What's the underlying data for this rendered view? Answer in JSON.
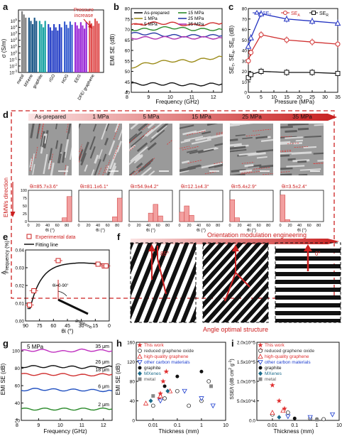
{
  "figure": {
    "panel_a": {
      "label": "a",
      "ylabel": "σ (S/m)",
      "yticks": [
        "10^5",
        "10^4",
        "10^3",
        "10^2",
        "10^1",
        "10^0",
        "10^-1",
        "10^-2",
        "10^-3"
      ],
      "categories": [
        "metal",
        "MXene",
        "graphite",
        "rGO",
        "HOG",
        "EEG",
        "DFE/ graphene",
        "graphene"
      ],
      "annotation": "Pressure increase"
    },
    "panel_b": {
      "label": "b",
      "xlabel": "Frequency (GHz)",
      "ylabel": "EMI SE (dB)",
      "yticks": [
        "40",
        "45",
        "50",
        "55",
        "60",
        "65",
        "70",
        "75",
        "80"
      ],
      "xticks": [
        "8",
        "9",
        "10",
        "11",
        "12"
      ],
      "legend": [
        "As-prepared",
        "1 MPa",
        "5 MPa",
        "15 MPa",
        "25 MPa",
        "35 MPa"
      ]
    },
    "panel_c": {
      "label": "c",
      "xlabel": "Pressure (MPa)",
      "ylabel": "SE_T, SE_A, SE_R (dB)",
      "legend": [
        "SE_T",
        "SE_A",
        "SE_R"
      ],
      "xticks": [
        "0",
        "5",
        "10",
        "15",
        "20",
        "25",
        "30",
        "35"
      ],
      "yticks": [
        "0",
        "10",
        "20",
        "30",
        "40",
        "50",
        "60",
        "70",
        "80"
      ]
    },
    "panel_d": {
      "label": "d",
      "side_label": "EMWs direction",
      "columns": [
        "As-prepared",
        "1 MPa",
        "5 MPa",
        "15 MPa",
        "25 MPa",
        "35 MPa"
      ],
      "theta_labels": [
        "θi=85.7±3.6°",
        "θi=81.1±6.1°",
        "θi=54.9±4.2°",
        "θi=12.1±4.3°",
        "θi=5.4±2.9°",
        "θi=3.5±2.4°"
      ],
      "hist_ylabel": "Frequency (%)",
      "hist_yticks": [
        "0",
        "25",
        "50",
        "75",
        "100"
      ],
      "hist_xlabel": "θi (°)",
      "hist_xticks": [
        "0",
        "20",
        "40",
        "60",
        "80"
      ]
    },
    "panel_e": {
      "label": "e",
      "legend": [
        "Experimental data",
        "Fitting line"
      ],
      "ylabel": "A",
      "xlabel": "θi (°)",
      "yticks": [
        "0.00",
        "0.01",
        "0.02",
        "0.03",
        "0.04"
      ],
      "xticks": [
        "90",
        "75",
        "60",
        "45",
        "30",
        "15",
        "0"
      ],
      "inset_theta": "θi=0-90°",
      "inset_label": "graphene"
    },
    "panel_f": {
      "label": "f",
      "title_top": "Orientation modulation engineering",
      "title_bottom": "Angle optimal structure",
      "angle_left": "85°",
      "angle_right": "0°"
    },
    "panel_g": {
      "label": "g",
      "title": "5 MPa",
      "xlabel": "Frequency (GHz)",
      "ylabel": "EMI SE (dB)",
      "yticks": [
        "20",
        "40",
        "60",
        "80",
        "100"
      ],
      "xticks": [
        "8",
        "9",
        "10",
        "11",
        "12"
      ],
      "curve_labels": [
        "35 μm",
        "26 μm",
        "18 μm",
        "6 μm",
        "2 μm"
      ]
    },
    "panel_h": {
      "label": "h",
      "xlabel": "Thickness (mm)",
      "ylabel": "EMI SE (dB)",
      "yticks": [
        "0",
        "40",
        "80",
        "120",
        "160"
      ],
      "xticks": [
        "0.01",
        "0.1",
        "1",
        "10"
      ],
      "legend": [
        "This work",
        "reduced graphene oxide",
        "high-quality graphene",
        "other carbon materials",
        "graphite",
        "MXenes",
        "metal"
      ]
    },
    "panel_i": {
      "label": "i",
      "xlabel": "Thickness (mm)",
      "ylabel": "SSE/t (dB cm^2 g^-1)",
      "yticks": [
        "0.0",
        "5.0x10^4",
        "1.0x10^5",
        "1.5x10^5",
        "2.0x10^5"
      ],
      "xticks": [
        "0.01",
        "0.1",
        "1",
        "10"
      ],
      "legend": [
        "This work",
        "reduced graphene oxide",
        "high-quality graphene",
        "other carbon materials",
        "graphite",
        "MXenes",
        "metal"
      ]
    }
  },
  "chart_data": [
    {
      "panel": "a",
      "type": "bar",
      "categories": [
        "metal",
        "MXene",
        "graphite",
        "rGO",
        "HOG",
        "EEG",
        "DFE/ graphene"
      ],
      "values_log10": [
        6.5,
        5.5,
        5.0,
        4.5,
        4.9,
        4.8,
        5.0
      ],
      "ylim_log10": [
        -3,
        6.7
      ],
      "colors": [
        "#7f7f7f",
        "#1f5a8a",
        "#1aa3a3",
        "#2c45c8",
        "#3a5fd0",
        "#9c2dd8",
        "#e05050"
      ]
    },
    {
      "panel": "b",
      "type": "line",
      "x": [
        8.2,
        9,
        10,
        11,
        12.4
      ],
      "xlim": [
        8.2,
        12.4
      ],
      "ylim": [
        40,
        80
      ],
      "series": [
        {
          "name": "As-prepared",
          "color": "#111111",
          "values": [
            44,
            44,
            44,
            43.5,
            44
          ]
        },
        {
          "name": "1 MPa",
          "color": "#9c8c1a",
          "values": [
            52,
            54,
            55,
            55,
            57
          ]
        },
        {
          "name": "5 MPa",
          "color": "#d03030",
          "values": [
            72,
            73,
            73,
            72,
            73
          ]
        },
        {
          "name": "15 MPa",
          "color": "#2a8a2a",
          "values": [
            70,
            70,
            71,
            70,
            70
          ]
        },
        {
          "name": "25 MPa",
          "color": "#2a3aa8",
          "values": [
            68,
            68,
            67,
            67,
            67
          ]
        },
        {
          "name": "35 MPa",
          "color": "#b030b0",
          "values": [
            66,
            66,
            66,
            66,
            66
          ]
        }
      ]
    },
    {
      "panel": "c",
      "type": "line",
      "x": [
        0,
        1,
        5,
        15,
        25,
        35
      ],
      "xlim": [
        0,
        35
      ],
      "ylim": [
        0,
        80
      ],
      "series": [
        {
          "name": "SE_T",
          "color": "#2030c0",
          "values": [
            44,
            52,
            75,
            70,
            68,
            66
          ]
        },
        {
          "name": "SE_A",
          "color": "#d03030",
          "values": [
            30,
            38,
            55,
            50,
            48,
            46
          ]
        },
        {
          "name": "SE_R",
          "color": "#111111",
          "values": [
            14,
            17,
            20,
            19,
            19,
            18
          ]
        }
      ]
    },
    {
      "panel": "d",
      "type": "bar",
      "x": [
        0,
        20,
        40,
        60,
        80
      ],
      "series": [
        {
          "name": "As-prepared",
          "peak_theta": 85.7,
          "peak_frequency": 80
        },
        {
          "name": "1 MPa",
          "peak_theta": 81.1,
          "peak_frequency": 75
        },
        {
          "name": "5 MPa",
          "peak_theta": 54.9,
          "peak_frequency": 55
        },
        {
          "name": "15 MPa",
          "peak_theta": 12.1,
          "peak_frequency": 50
        },
        {
          "name": "25 MPa",
          "peak_theta": 5.4,
          "peak_frequency": 70
        },
        {
          "name": "35 MPa",
          "peak_theta": 3.5,
          "peak_frequency": 85
        }
      ]
    },
    {
      "panel": "e",
      "type": "scatter",
      "x": [
        85.7,
        81.1,
        54.9,
        12.1,
        5.4,
        3.5
      ],
      "y": [
        0.009,
        0.017,
        0.034,
        0.032,
        0.031,
        0.031
      ],
      "xlim": [
        90,
        0
      ],
      "ylim": [
        0,
        0.04
      ]
    },
    {
      "panel": "g",
      "type": "line",
      "x": [
        8.2,
        9,
        10,
        11,
        12.4
      ],
      "xlim": [
        8.2,
        12.4
      ],
      "ylim": [
        20,
        110
      ],
      "series": [
        {
          "name": "35 μm",
          "color": "#c030c0",
          "values": [
            100,
            101,
            99,
            101,
            100
          ]
        },
        {
          "name": "26 μm",
          "color": "#111111",
          "values": [
            82,
            82,
            82,
            81,
            82
          ]
        },
        {
          "name": "18 μm",
          "color": "#d03030",
          "values": [
            73,
            73,
            73,
            72,
            73
          ]
        },
        {
          "name": "6 μm",
          "color": "#1f4fc0",
          "values": [
            55,
            56,
            55,
            55,
            54
          ]
        },
        {
          "name": "2 μm",
          "color": "#2a8a2a",
          "values": [
            33,
            33,
            33,
            33,
            33
          ]
        }
      ]
    },
    {
      "panel": "h",
      "type": "scatter",
      "xscale": "log",
      "xlim": [
        0.002,
        10
      ],
      "ylim": [
        0,
        160
      ],
      "series": [
        {
          "name": "This work",
          "marker": "star",
          "color": "#e03030",
          "x": [
            0.018,
            0.02,
            0.026,
            0.035
          ],
          "y": [
            45,
            55,
            80,
            100
          ]
        },
        {
          "name": "reduced graphene oxide",
          "marker": "circle-open",
          "color": "#333333",
          "x": [
            0.01,
            0.03,
            0.1,
            0.3,
            1,
            2
          ],
          "y": [
            30,
            45,
            60,
            30,
            40,
            80
          ]
        },
        {
          "name": "high-quality graphene",
          "marker": "triangle-open",
          "color": "#e03030",
          "x": [
            0.005,
            0.02,
            0.05
          ],
          "y": [
            35,
            50,
            60
          ]
        },
        {
          "name": "other carbon materials",
          "marker": "triangle-down-open",
          "color": "#2040d0",
          "x": [
            0.02,
            0.2,
            1,
            3
          ],
          "y": [
            40,
            60,
            45,
            30
          ]
        },
        {
          "name": "graphite",
          "marker": "circle",
          "color": "#111111",
          "x": [
            0.03,
            0.1,
            1
          ],
          "y": [
            70,
            90,
            100
          ]
        },
        {
          "name": "MXenes",
          "marker": "diamond",
          "color": "#1a6a8a",
          "x": [
            0.008,
            0.04
          ],
          "y": [
            40,
            60
          ]
        },
        {
          "name": "metal",
          "marker": "square",
          "color": "#888888",
          "x": [
            0.01,
            2.5
          ],
          "y": [
            50,
            70
          ]
        }
      ]
    },
    {
      "panel": "i",
      "type": "scatter",
      "xscale": "log",
      "xlim": [
        0.002,
        10
      ],
      "ylim": [
        0,
        200000
      ],
      "series": [
        {
          "name": "This work",
          "marker": "star",
          "color": "#e03030",
          "x": [
            0.003,
            0.01,
            0.02,
            0.035
          ],
          "y": [
            180000,
            90000,
            50000,
            30000
          ]
        },
        {
          "name": "reduced graphene oxide",
          "marker": "circle-open",
          "color": "#333333",
          "x": [
            0.01,
            0.05,
            0.5,
            2
          ],
          "y": [
            15000,
            20000,
            5000,
            3000
          ]
        },
        {
          "name": "high-quality graphene",
          "marker": "triangle-open",
          "color": "#e03030",
          "x": [
            0.01,
            0.03
          ],
          "y": [
            20000,
            25000
          ]
        },
        {
          "name": "other carbon materials",
          "marker": "triangle-down-open",
          "color": "#2040d0",
          "x": [
            0.05,
            0.5,
            5
          ],
          "y": [
            10000,
            8000,
            15000
          ]
        },
        {
          "name": "graphite",
          "marker": "circle",
          "color": "#111111",
          "x": [
            0.1,
            1
          ],
          "y": [
            5000,
            3000
          ]
        },
        {
          "name": "MXenes",
          "marker": "diamond",
          "color": "#1a6a8a",
          "x": [
            0.02
          ],
          "y": [
            8000
          ]
        },
        {
          "name": "metal",
          "marker": "square",
          "color": "#888888",
          "x": [
            1
          ],
          "y": [
            2000
          ]
        }
      ]
    }
  ]
}
